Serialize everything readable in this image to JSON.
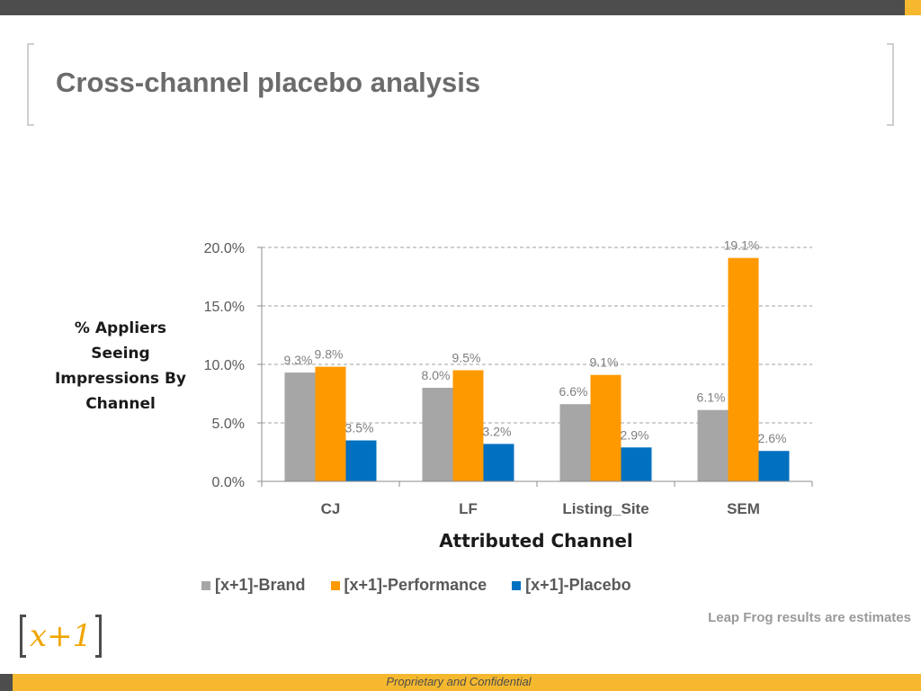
{
  "slide": {
    "title": "Cross-channel placebo analysis",
    "footnote": "Leap Frog results are estimates",
    "confidential": "Proprietary and Confidential",
    "logo_text": "x+1"
  },
  "colors": {
    "brand": "#a6a6a6",
    "performance": "#ff9900",
    "placebo": "#0070c0",
    "accent_bar": "#f5b82e",
    "dark_bar": "#4d4d4d"
  },
  "chart_data": {
    "type": "bar",
    "title": "",
    "xlabel": "Attributed Channel",
    "ylabel": "% Appliers Seeing Impressions By Channel",
    "ylim": [
      0,
      20
    ],
    "yticks": [
      "0.0%",
      "5.0%",
      "10.0%",
      "15.0%",
      "20.0%"
    ],
    "ytick_values": [
      0,
      5,
      10,
      15,
      20
    ],
    "grid": true,
    "legend_placement": "bottom",
    "categories": [
      "CJ",
      "LF",
      "Listing_Site",
      "SEM"
    ],
    "series": [
      {
        "name": "[x+1]-Brand",
        "color": "#a6a6a6",
        "values": [
          9.3,
          8.0,
          6.6,
          6.1
        ],
        "labels": [
          "9.3%",
          "8.0%",
          "6.6%",
          "6.1%"
        ]
      },
      {
        "name": "[x+1]-Performance",
        "color": "#ff9900",
        "values": [
          9.8,
          9.5,
          9.1,
          19.1
        ],
        "labels": [
          "9.8%",
          "9.5%",
          "9.1%",
          "19.1%"
        ]
      },
      {
        "name": "[x+1]-Placebo",
        "color": "#0070c0",
        "values": [
          3.5,
          3.2,
          2.9,
          2.6
        ],
        "labels": [
          "3.5%",
          "3.2%",
          "2.9%",
          "2.6%"
        ]
      }
    ]
  }
}
